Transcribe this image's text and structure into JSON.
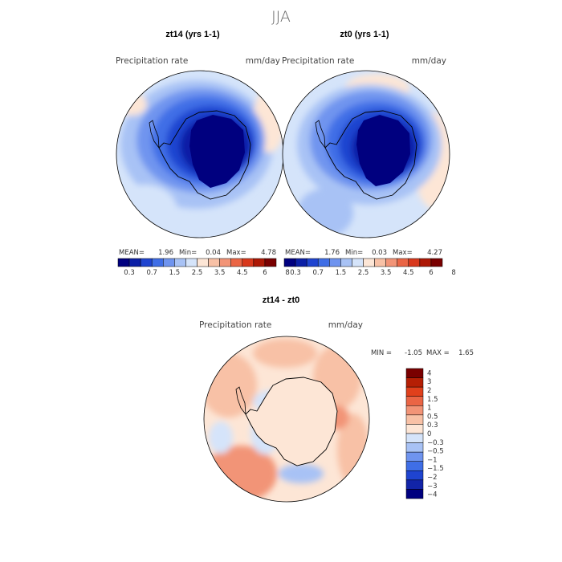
{
  "figure": {
    "title": "JJA",
    "colors": {
      "abs_scale": [
        "#00007f",
        "#0b1fa6",
        "#1f44d0",
        "#3f6ee6",
        "#6f94ef",
        "#a8c2f5",
        "#d5e4fa",
        "#fde6d6",
        "#f8c1a6",
        "#f29477",
        "#ea6545",
        "#d8381c",
        "#ad1805",
        "#7a0000"
      ],
      "diff_scale": [
        "#00007f",
        "#1224a8",
        "#1f44d0",
        "#3f6ee6",
        "#6f94ef",
        "#a8c2f5",
        "#d5e4fa",
        "#fde6d6",
        "#f8c1a6",
        "#f29477",
        "#ea6545",
        "#e0401c",
        "#b51f05",
        "#7a0000"
      ]
    }
  },
  "chart_data": [
    {
      "type": "heatmap",
      "title": "zt14 (yrs 1-1)",
      "variable_label": "Precipitation rate",
      "units_label": "mm/day",
      "stats": {
        "mean_label": "MEAN=",
        "mean": "1.96",
        "min_label": "Min=",
        "min": "0.04",
        "max_label": "Max=",
        "max": "4.78"
      },
      "colorbar_ticks": [
        "0.3",
        "0.7",
        "1.5",
        "2.5",
        "3.5",
        "4.5",
        "6",
        "8"
      ],
      "projection": "south-polar-stereographic"
    },
    {
      "type": "heatmap",
      "title": "zt0 (yrs 1-1)",
      "variable_label": "Precipitation rate",
      "units_label": "mm/day",
      "stats": {
        "mean_label": "MEAN=",
        "mean": "1.76",
        "min_label": "Min=",
        "min": "0.03",
        "max_label": "Max=",
        "max": "4.27"
      },
      "colorbar_ticks": [
        "0.3",
        "0.7",
        "1.5",
        "2.5",
        "3.5",
        "4.5",
        "6",
        "8"
      ],
      "projection": "south-polar-stereographic"
    },
    {
      "type": "heatmap",
      "title": "zt14 - zt0",
      "variable_label": "Precipitation rate",
      "units_label": "mm/day",
      "stats": {
        "min_label": "MIN =",
        "min": "-1.05",
        "max_label": "MAX =",
        "max": "1.65"
      },
      "colorbar_ticks": [
        "4",
        "3",
        "2",
        "1.5",
        "1",
        "0.5",
        "0.3",
        "0",
        "−0.3",
        "−0.5",
        "−1",
        "−1.5",
        "−2",
        "−3",
        "−4"
      ],
      "projection": "south-polar-stereographic"
    }
  ]
}
